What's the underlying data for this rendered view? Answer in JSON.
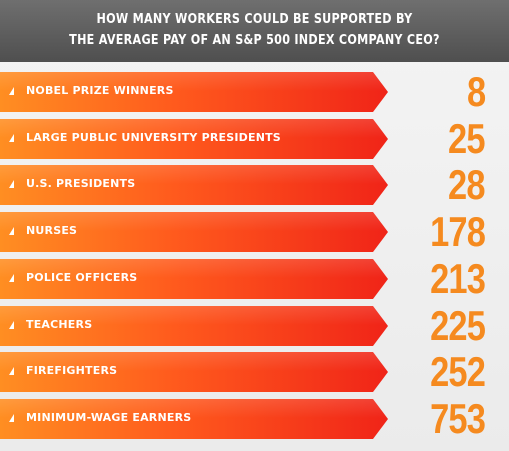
{
  "chart_data": {
    "type": "bar",
    "title_lines": [
      "HOW MANY WORKERS COULD BE SUPPORTED BY",
      "THE AVERAGE PAY OF AN S&P 500 INDEX COMPANY CEO?"
    ],
    "categories": [
      "NOBEL PRIZE WINNERS",
      "LARGE PUBLIC UNIVERSITY PRESIDENTS",
      "U.S. PRESIDENTS",
      "NURSES",
      "POLICE OFFICERS",
      "TEACHERS",
      "FIREFIGHTERS",
      "MINIMUM-WAGE EARNERS"
    ],
    "values": [
      8,
      25,
      28,
      178,
      213,
      225,
      252,
      753
    ],
    "colors": {
      "header": "#5f5f5f",
      "bar_start": "#ff8e22",
      "bar_end": "#f02418",
      "value_text": "#f58a1f",
      "background": "#efefef"
    }
  }
}
